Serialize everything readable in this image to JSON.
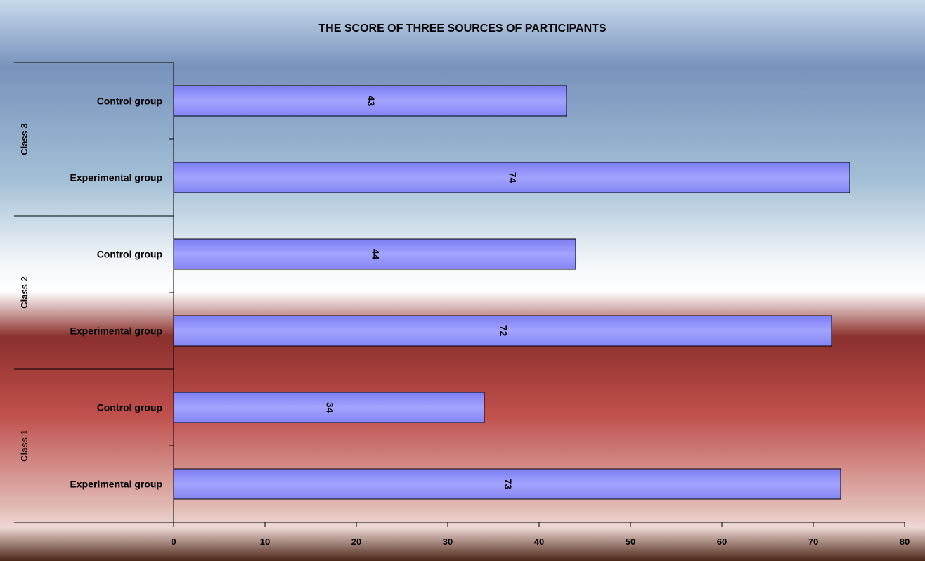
{
  "chart_data": {
    "type": "bar",
    "orientation": "horizontal",
    "title": "THE SCORE OF THREE SOURCES OF PARTICIPANTS",
    "xlabel": "",
    "ylabel": "",
    "xlim": [
      0,
      80
    ],
    "x_ticks": [
      0,
      10,
      20,
      30,
      40,
      50,
      60,
      70,
      80
    ],
    "grid": false,
    "legend": "none",
    "groups": [
      "Class 1",
      "Class 2",
      "Class 3"
    ],
    "categories": [
      {
        "group": "Class 1",
        "label": "Experimental group",
        "value": 73
      },
      {
        "group": "Class 1",
        "label": "Control group",
        "value": 34
      },
      {
        "group": "Class 2",
        "label": "Experimental group",
        "value": 72
      },
      {
        "group": "Class 2",
        "label": "Control group",
        "value": 44
      },
      {
        "group": "Class 3",
        "label": "Experimental group",
        "value": 74
      },
      {
        "group": "Class 3",
        "label": "Control group",
        "value": 43
      }
    ],
    "colors": {
      "bar_fill": "#9999ff",
      "bar_stroke": "#000000",
      "background_top": "#6f8fbd",
      "background_mid": "#ffffff",
      "background_low": "#c0504d"
    }
  }
}
